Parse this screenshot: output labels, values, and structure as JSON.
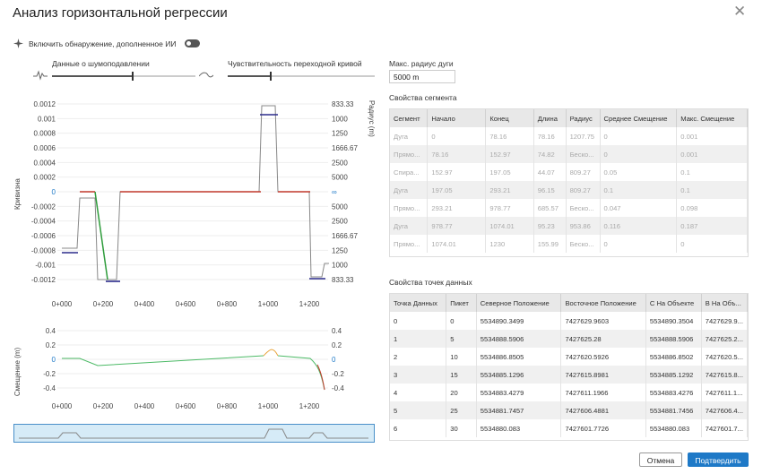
{
  "window": {
    "title": "Анализ горизонтальной регрессии"
  },
  "ai_toggle": {
    "label": "Включить обнаружение, дополненное ИИ"
  },
  "sliders": {
    "noise": {
      "label": "Данные о шумоподавлении",
      "value": 0.6
    },
    "sensitivity": {
      "label": "Чувствительность переходной кривой",
      "value": 0.3
    }
  },
  "max_radius": {
    "label": "Макс. радиус дуги",
    "value": "5000 m"
  },
  "curvature_chart": {
    "ylabel_left": "Кривизна",
    "ylabel_right": "Радиус (m)",
    "left_ticks": [
      "0.0012",
      "0.001",
      "0.0008",
      "0.0006",
      "0.0004",
      "0.0002",
      "0",
      "-0.0002",
      "-0.0004",
      "-0.0006",
      "-0.0008",
      "-0.001",
      "-0.0012"
    ],
    "right_ticks": [
      "833.33",
      "1000",
      "1250",
      "1666.67",
      "2500",
      "5000",
      "∞",
      "5000",
      "2500",
      "1666.67",
      "1250",
      "1000",
      "833.33"
    ],
    "x_ticks": [
      "0+000",
      "0+100",
      "0+200",
      "0+300",
      "0+400",
      "0+500",
      "0+600",
      "0+700",
      "0+800",
      "0+900",
      "1+000",
      "1+100",
      "1+200"
    ]
  },
  "offset_chart": {
    "ylabel_left": "Смещение (m)",
    "left_ticks": [
      "0.4",
      "0.2",
      "0",
      "-0.2",
      "-0.4"
    ],
    "right_ticks": [
      "0.4",
      "0.2",
      "0",
      "-0.2",
      "-0.4"
    ],
    "x_ticks": [
      "0+000",
      "0+100",
      "0+200",
      "0+300",
      "0+400",
      "0+500",
      "0+600",
      "0+700",
      "0+800",
      "0+900",
      "1+000",
      "1+100",
      "1+200"
    ]
  },
  "segment_props": {
    "title": "Свойства сегмента",
    "headers": [
      "Сегмент",
      "Начало",
      "Конец",
      "Длина",
      "Радиус",
      "Среднее Смещение",
      "Макс. Смещение"
    ],
    "rows": [
      [
        "Дуга",
        "0",
        "78.16",
        "78.16",
        "1207.75",
        "0",
        "0.001"
      ],
      [
        "Прямо...",
        "78.16",
        "152.97",
        "74.82",
        "Беско...",
        "0",
        "0.001"
      ],
      [
        "Спира...",
        "152.97",
        "197.05",
        "44.07",
        "809.27",
        "0.05",
        "0.1"
      ],
      [
        "Дуга",
        "197.05",
        "293.21",
        "96.15",
        "809.27",
        "0.1",
        "0.1"
      ],
      [
        "Прямо...",
        "293.21",
        "978.77",
        "685.57",
        "Беско...",
        "0.047",
        "0.098"
      ],
      [
        "Дуга",
        "978.77",
        "1074.01",
        "95.23",
        "953.86",
        "0.116",
        "0.187"
      ],
      [
        "Прямо...",
        "1074.01",
        "1230",
        "155.99",
        "Беско...",
        "0",
        "0"
      ]
    ]
  },
  "point_props": {
    "title": "Свойства точек данных",
    "headers": [
      "Точка Данных",
      "Пикет",
      "Северное Положение",
      "Восточное Положение",
      "С На Объекте",
      "В На Объ..."
    ],
    "rows": [
      [
        "0",
        "0",
        "5534890.3499",
        "7427629.9603",
        "5534890.3504",
        "7427629.9..."
      ],
      [
        "1",
        "5",
        "5534888.5906",
        "7427625.28",
        "5534888.5906",
        "7427625.2..."
      ],
      [
        "2",
        "10",
        "5534886.8505",
        "7427620.5926",
        "5534886.8502",
        "7427620.5..."
      ],
      [
        "3",
        "15",
        "5534885.1296",
        "7427615.8981",
        "5534885.1292",
        "7427615.8..."
      ],
      [
        "4",
        "20",
        "5534883.4279",
        "7427611.1966",
        "5534883.4276",
        "7427611.1..."
      ],
      [
        "5",
        "25",
        "5534881.7457",
        "7427606.4881",
        "5534881.7456",
        "7427606.4..."
      ],
      [
        "6",
        "30",
        "5534880.083",
        "7427601.7726",
        "5534880.083",
        "7427601.7..."
      ]
    ]
  },
  "buttons": {
    "cancel": "Отмена",
    "confirm": "Подтвердить"
  },
  "icons": {
    "ai": "sparkle-icon",
    "close": "close-icon",
    "noise_left": "noisy-wave-icon",
    "noise_right": "smooth-wave-icon"
  },
  "colors": {
    "accent": "#1e79c7",
    "straight": "#c0392b",
    "spiral": "#2e9c3b",
    "fit_bar": "#2c2c8c",
    "raw": "#888888"
  }
}
